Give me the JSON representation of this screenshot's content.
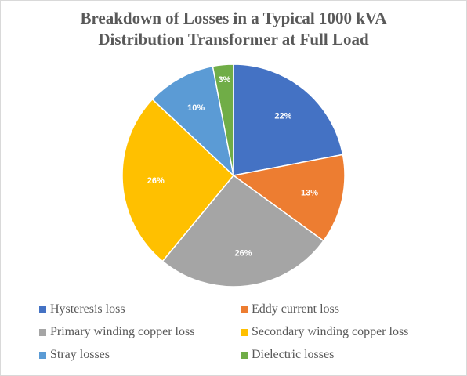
{
  "chart_data": {
    "type": "pie",
    "title_lines": [
      "Breakdown of Losses in a Typical 1000 kVA",
      "Distribution Transformer at Full Load"
    ],
    "slices": [
      {
        "name": "Hysteresis loss",
        "value": 22,
        "label": "22%",
        "color": "#4472C4"
      },
      {
        "name": "Eddy current loss",
        "value": 13,
        "label": "13%",
        "color": "#ED7D31"
      },
      {
        "name": "Primary winding copper loss",
        "value": 26,
        "label": "26%",
        "color": "#A5A5A5"
      },
      {
        "name": "Secondary winding copper loss",
        "value": 26,
        "label": "26%",
        "color": "#FFC000"
      },
      {
        "name": "Stray losses",
        "value": 10,
        "label": "10%",
        "color": "#5B9BD5"
      },
      {
        "name": "Dielectric losses",
        "value": 3,
        "label": "3%",
        "color": "#70AD47"
      }
    ],
    "legend_position": "bottom"
  }
}
